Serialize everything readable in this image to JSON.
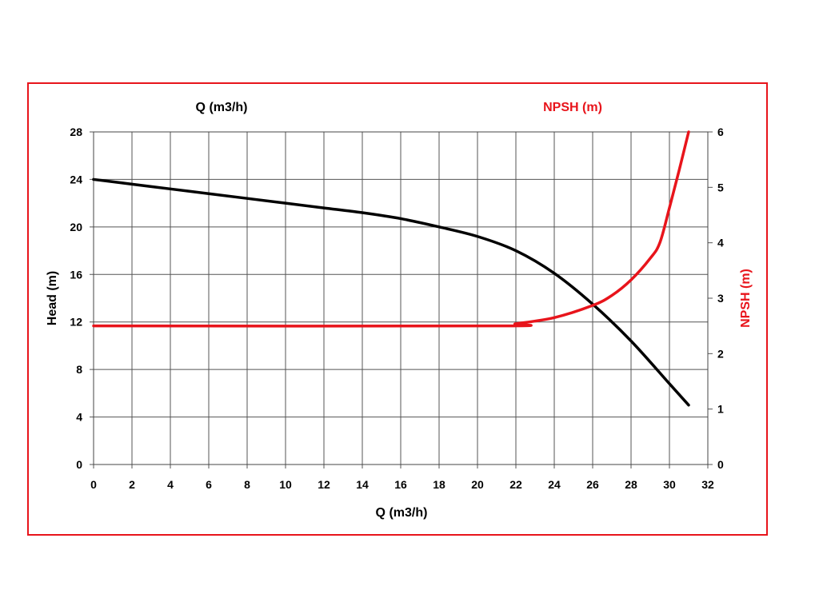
{
  "chart_data": {
    "type": "line",
    "top_left_label": "Q (m3/h)",
    "top_right_label": "NPSH (m)",
    "xlabel": "Q (m3/h)",
    "ylabel": "Head (m)",
    "y2label": "NPSH (m)",
    "xlim": [
      0,
      32
    ],
    "ylim": [
      0,
      28
    ],
    "y2lim": [
      0,
      6
    ],
    "xticks": [
      0,
      2,
      4,
      6,
      8,
      10,
      12,
      14,
      16,
      18,
      20,
      22,
      24,
      26,
      28,
      30,
      32
    ],
    "yticks": [
      0,
      4,
      8,
      12,
      16,
      20,
      24,
      28
    ],
    "y2ticks": [
      0,
      1,
      2,
      3,
      4,
      5,
      6
    ],
    "grid": true,
    "colors": {
      "head": "#000000",
      "npsh": "#e8141b",
      "frame": "#e8141b"
    },
    "series": [
      {
        "name": "Head (m)",
        "axis": "left",
        "x": [
          0,
          2,
          4,
          6,
          8,
          10,
          12,
          14,
          16,
          18,
          20,
          22,
          24,
          26,
          28,
          30,
          31
        ],
        "y": [
          24,
          23.6,
          23.2,
          22.8,
          22.4,
          22,
          21.6,
          21.2,
          20.7,
          20,
          19.2,
          18,
          16.1,
          13.5,
          10.4,
          6.8,
          5
        ]
      },
      {
        "name": "NPSH (m)",
        "axis": "right",
        "x": [
          0,
          21,
          22,
          24,
          26,
          27,
          28,
          29,
          29.5,
          30,
          30.5,
          31
        ],
        "y": [
          2.5,
          2.5,
          2.54,
          2.65,
          2.87,
          3.05,
          3.33,
          3.72,
          4.0,
          4.63,
          5.3,
          6.0
        ]
      }
    ]
  }
}
